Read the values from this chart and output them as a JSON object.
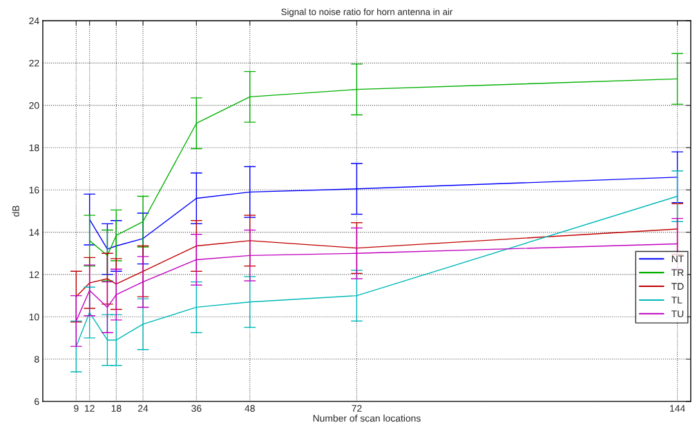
{
  "chart_data": {
    "type": "line",
    "title": "Signal to noise ratio for horn antenna in air",
    "xlabel": "Number of scan locations",
    "ylabel": "dB",
    "x": [
      9,
      12,
      16,
      18,
      24,
      36,
      48,
      72,
      144
    ],
    "xlim": [
      1.5,
      147
    ],
    "xticks": [
      9,
      12,
      18,
      24,
      36,
      48,
      72,
      144
    ],
    "ylim": [
      6,
      24
    ],
    "yticks": [
      6,
      8,
      10,
      12,
      14,
      16,
      18,
      20,
      22,
      24
    ],
    "grid": true,
    "legend": "right",
    "marker": "none",
    "line_style": "solid",
    "series": [
      {
        "name": "NT",
        "color": "#0000ff",
        "values": [
          null,
          14.6,
          13.2,
          13.35,
          13.7,
          15.6,
          15.9,
          16.05,
          16.6
        ],
        "errors": [
          null,
          1.2,
          1.2,
          1.2,
          1.2,
          1.2,
          1.2,
          1.2,
          1.2
        ]
      },
      {
        "name": "TR",
        "color": "#00b000",
        "values": [
          null,
          13.6,
          12.9,
          13.85,
          14.5,
          19.15,
          20.4,
          20.75,
          21.25
        ],
        "errors": [
          null,
          1.2,
          1.2,
          1.2,
          1.2,
          1.2,
          1.2,
          1.2,
          1.2
        ]
      },
      {
        "name": "TD",
        "color": "#c00000",
        "values": [
          10.95,
          11.6,
          11.8,
          11.55,
          12.15,
          13.35,
          13.6,
          13.25,
          14.15
        ],
        "errors": [
          1.2,
          1.2,
          1.2,
          1.2,
          1.2,
          1.2,
          1.2,
          1.2,
          1.2
        ]
      },
      {
        "name": "TL",
        "color": "#00b8b8",
        "values": [
          8.6,
          10.2,
          8.9,
          8.9,
          9.65,
          10.45,
          10.7,
          11.0,
          15.7
        ],
        "errors": [
          1.2,
          1.2,
          1.2,
          1.2,
          1.2,
          1.2,
          1.2,
          1.2,
          1.2
        ]
      },
      {
        "name": "TU",
        "color": "#c000c0",
        "values": [
          9.8,
          11.25,
          10.45,
          11.05,
          11.65,
          12.7,
          12.9,
          13.0,
          13.45
        ],
        "errors": [
          1.2,
          1.2,
          1.2,
          1.2,
          1.2,
          1.2,
          1.2,
          1.2,
          1.2
        ]
      }
    ]
  }
}
